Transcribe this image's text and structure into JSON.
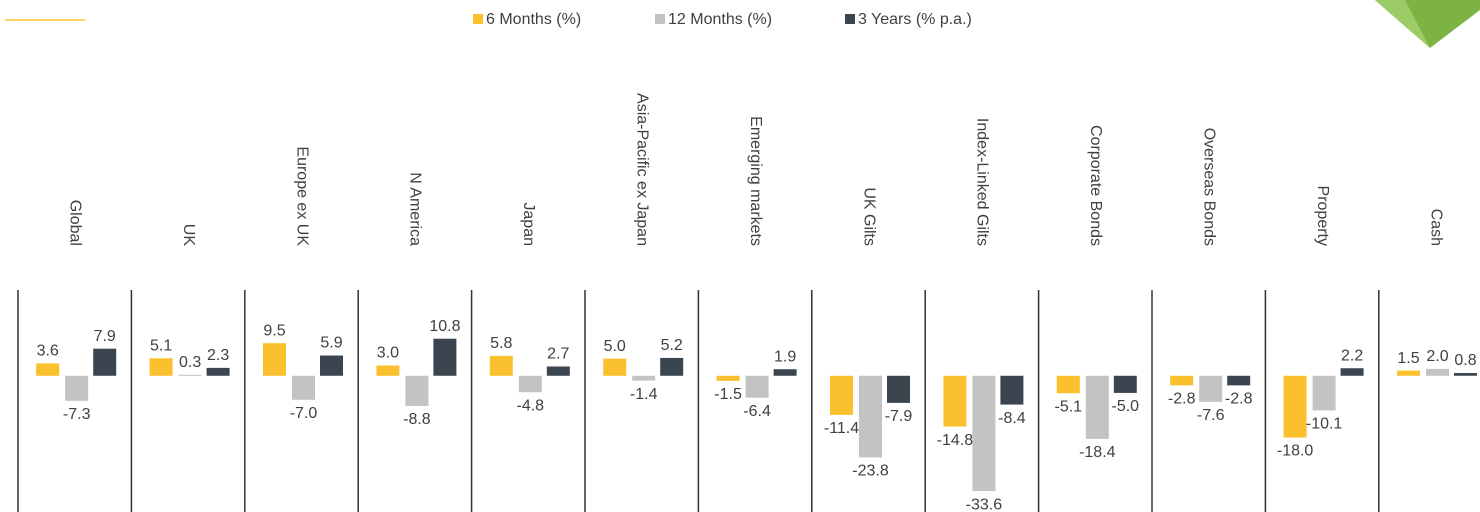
{
  "chart_data": {
    "type": "bar",
    "categories": [
      "Global",
      "UK",
      "Europe ex UK",
      "N America",
      "Japan",
      "Asia-Pacific ex Japan",
      "Emerging markets",
      "UK Gilts",
      "Index-Linked Gilts",
      "Corporate Bonds",
      "Overseas Bonds",
      "Property",
      "Cash"
    ],
    "series": [
      {
        "name": "6 Months (%)",
        "color": "#fbc02d",
        "values": [
          3.6,
          5.1,
          9.5,
          3.0,
          5.8,
          5.0,
          -1.5,
          -11.4,
          -14.8,
          -5.1,
          -2.8,
          -18.0,
          1.5
        ],
        "value_labels": [
          "3.6",
          "5.1",
          "9.5",
          "3.0",
          "5.8",
          "5.0",
          "-1.5",
          "-11.4",
          "-14.8",
          "-5.1",
          "-2.8",
          "-18.0",
          "1.5"
        ]
      },
      {
        "name": "12 Months (%)",
        "color": "#c3c3c3",
        "values": [
          -7.3,
          0.3,
          -7.0,
          -8.8,
          -4.8,
          -1.4,
          -6.4,
          -23.8,
          -33.6,
          -18.4,
          -7.6,
          -10.1,
          2.0
        ],
        "value_labels": [
          "-7.3",
          "0.3",
          "-7.0",
          "-8.8",
          "-4.8",
          "-1.4",
          "-6.4",
          "-23.8",
          "-33.6",
          "-18.4",
          "-7.6",
          "-10.1",
          "2.0"
        ]
      },
      {
        "name": "3 Years (% p.a.)",
        "color": "#3b4550",
        "values": [
          7.9,
          2.3,
          5.9,
          10.8,
          2.7,
          5.2,
          1.9,
          -7.9,
          -8.4,
          -5.0,
          -2.8,
          2.2,
          0.8
        ],
        "value_labels": [
          "7.9",
          "2.3",
          "5.9",
          "10.8",
          "2.7",
          "5.2",
          "1.9",
          "-7.9",
          "-8.4",
          "-5.0",
          "-2.8",
          "2.2",
          "0.8"
        ]
      }
    ],
    "ylim": [
      -40,
      25
    ],
    "legend": "top"
  }
}
